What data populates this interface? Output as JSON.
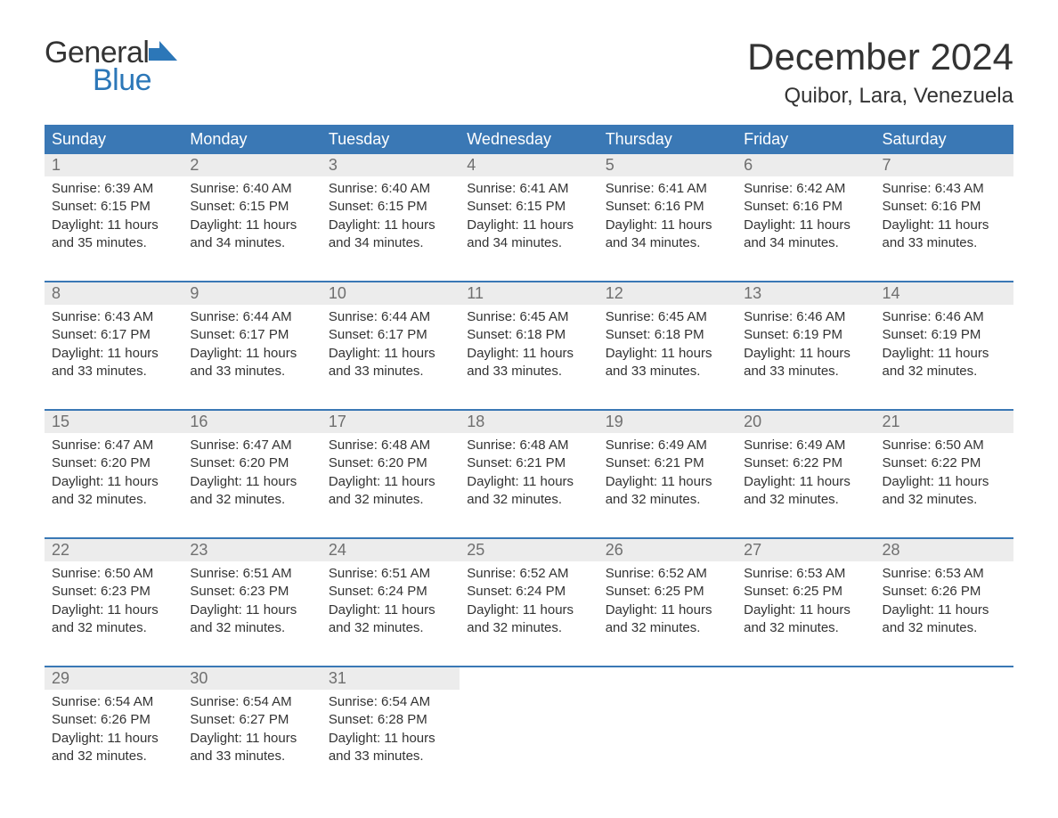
{
  "logo": {
    "text1": "General",
    "text2": "Blue",
    "icon_color": "#2c77b8"
  },
  "title": "December 2024",
  "location": "Quibor, Lara, Venezuela",
  "colors": {
    "header_bg": "#3a78b5",
    "header_text": "#ffffff",
    "daynum_bg": "#ececec",
    "daynum_text": "#6f6f6f",
    "body_text": "#333333",
    "week_border": "#3a78b5",
    "page_bg": "#ffffff"
  },
  "day_labels": [
    "Sunday",
    "Monday",
    "Tuesday",
    "Wednesday",
    "Thursday",
    "Friday",
    "Saturday"
  ],
  "weeks": [
    [
      {
        "n": "1",
        "sunrise": "6:39 AM",
        "sunset": "6:15 PM",
        "dl1": "11 hours",
        "dl2": "and 35 minutes."
      },
      {
        "n": "2",
        "sunrise": "6:40 AM",
        "sunset": "6:15 PM",
        "dl1": "11 hours",
        "dl2": "and 34 minutes."
      },
      {
        "n": "3",
        "sunrise": "6:40 AM",
        "sunset": "6:15 PM",
        "dl1": "11 hours",
        "dl2": "and 34 minutes."
      },
      {
        "n": "4",
        "sunrise": "6:41 AM",
        "sunset": "6:15 PM",
        "dl1": "11 hours",
        "dl2": "and 34 minutes."
      },
      {
        "n": "5",
        "sunrise": "6:41 AM",
        "sunset": "6:16 PM",
        "dl1": "11 hours",
        "dl2": "and 34 minutes."
      },
      {
        "n": "6",
        "sunrise": "6:42 AM",
        "sunset": "6:16 PM",
        "dl1": "11 hours",
        "dl2": "and 34 minutes."
      },
      {
        "n": "7",
        "sunrise": "6:43 AM",
        "sunset": "6:16 PM",
        "dl1": "11 hours",
        "dl2": "and 33 minutes."
      }
    ],
    [
      {
        "n": "8",
        "sunrise": "6:43 AM",
        "sunset": "6:17 PM",
        "dl1": "11 hours",
        "dl2": "and 33 minutes."
      },
      {
        "n": "9",
        "sunrise": "6:44 AM",
        "sunset": "6:17 PM",
        "dl1": "11 hours",
        "dl2": "and 33 minutes."
      },
      {
        "n": "10",
        "sunrise": "6:44 AM",
        "sunset": "6:17 PM",
        "dl1": "11 hours",
        "dl2": "and 33 minutes."
      },
      {
        "n": "11",
        "sunrise": "6:45 AM",
        "sunset": "6:18 PM",
        "dl1": "11 hours",
        "dl2": "and 33 minutes."
      },
      {
        "n": "12",
        "sunrise": "6:45 AM",
        "sunset": "6:18 PM",
        "dl1": "11 hours",
        "dl2": "and 33 minutes."
      },
      {
        "n": "13",
        "sunrise": "6:46 AM",
        "sunset": "6:19 PM",
        "dl1": "11 hours",
        "dl2": "and 33 minutes."
      },
      {
        "n": "14",
        "sunrise": "6:46 AM",
        "sunset": "6:19 PM",
        "dl1": "11 hours",
        "dl2": "and 32 minutes."
      }
    ],
    [
      {
        "n": "15",
        "sunrise": "6:47 AM",
        "sunset": "6:20 PM",
        "dl1": "11 hours",
        "dl2": "and 32 minutes."
      },
      {
        "n": "16",
        "sunrise": "6:47 AM",
        "sunset": "6:20 PM",
        "dl1": "11 hours",
        "dl2": "and 32 minutes."
      },
      {
        "n": "17",
        "sunrise": "6:48 AM",
        "sunset": "6:20 PM",
        "dl1": "11 hours",
        "dl2": "and 32 minutes."
      },
      {
        "n": "18",
        "sunrise": "6:48 AM",
        "sunset": "6:21 PM",
        "dl1": "11 hours",
        "dl2": "and 32 minutes."
      },
      {
        "n": "19",
        "sunrise": "6:49 AM",
        "sunset": "6:21 PM",
        "dl1": "11 hours",
        "dl2": "and 32 minutes."
      },
      {
        "n": "20",
        "sunrise": "6:49 AM",
        "sunset": "6:22 PM",
        "dl1": "11 hours",
        "dl2": "and 32 minutes."
      },
      {
        "n": "21",
        "sunrise": "6:50 AM",
        "sunset": "6:22 PM",
        "dl1": "11 hours",
        "dl2": "and 32 minutes."
      }
    ],
    [
      {
        "n": "22",
        "sunrise": "6:50 AM",
        "sunset": "6:23 PM",
        "dl1": "11 hours",
        "dl2": "and 32 minutes."
      },
      {
        "n": "23",
        "sunrise": "6:51 AM",
        "sunset": "6:23 PM",
        "dl1": "11 hours",
        "dl2": "and 32 minutes."
      },
      {
        "n": "24",
        "sunrise": "6:51 AM",
        "sunset": "6:24 PM",
        "dl1": "11 hours",
        "dl2": "and 32 minutes."
      },
      {
        "n": "25",
        "sunrise": "6:52 AM",
        "sunset": "6:24 PM",
        "dl1": "11 hours",
        "dl2": "and 32 minutes."
      },
      {
        "n": "26",
        "sunrise": "6:52 AM",
        "sunset": "6:25 PM",
        "dl1": "11 hours",
        "dl2": "and 32 minutes."
      },
      {
        "n": "27",
        "sunrise": "6:53 AM",
        "sunset": "6:25 PM",
        "dl1": "11 hours",
        "dl2": "and 32 minutes."
      },
      {
        "n": "28",
        "sunrise": "6:53 AM",
        "sunset": "6:26 PM",
        "dl1": "11 hours",
        "dl2": "and 32 minutes."
      }
    ],
    [
      {
        "n": "29",
        "sunrise": "6:54 AM",
        "sunset": "6:26 PM",
        "dl1": "11 hours",
        "dl2": "and 32 minutes."
      },
      {
        "n": "30",
        "sunrise": "6:54 AM",
        "sunset": "6:27 PM",
        "dl1": "11 hours",
        "dl2": "and 33 minutes."
      },
      {
        "n": "31",
        "sunrise": "6:54 AM",
        "sunset": "6:28 PM",
        "dl1": "11 hours",
        "dl2": "and 33 minutes."
      },
      {
        "empty": true
      },
      {
        "empty": true
      },
      {
        "empty": true
      },
      {
        "empty": true
      }
    ]
  ],
  "labels": {
    "sunrise_prefix": "Sunrise: ",
    "sunset_prefix": "Sunset: ",
    "daylight_prefix": "Daylight: "
  }
}
